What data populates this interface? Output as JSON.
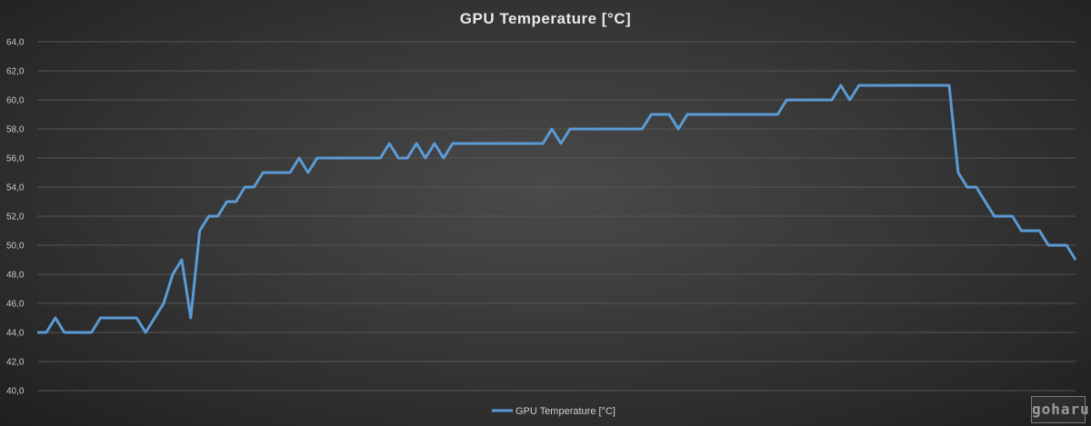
{
  "chart_data": {
    "type": "line",
    "title": "GPU Temperature [°C]",
    "xlabel": "",
    "ylabel": "",
    "ylim": [
      40,
      64
    ],
    "yticks": [
      "40,0",
      "42,0",
      "44,0",
      "46,0",
      "48,0",
      "50,0",
      "52,0",
      "54,0",
      "56,0",
      "58,0",
      "60,0",
      "62,0",
      "64,0"
    ],
    "grid": true,
    "legend_position": "bottom",
    "series": [
      {
        "name": "GPU Temperature [°C]",
        "color": "#5b9bd5",
        "values": [
          44,
          44,
          45,
          44,
          44,
          44,
          44,
          45,
          45,
          45,
          45,
          45,
          44,
          45,
          46,
          48,
          49,
          45,
          51,
          52,
          52,
          53,
          53,
          54,
          54,
          55,
          55,
          55,
          55,
          56,
          55,
          56,
          56,
          56,
          56,
          56,
          56,
          56,
          56,
          57,
          56,
          56,
          57,
          56,
          57,
          56,
          57,
          57,
          57,
          57,
          57,
          57,
          57,
          57,
          57,
          57,
          57,
          58,
          57,
          58,
          58,
          58,
          58,
          58,
          58,
          58,
          58,
          58,
          59,
          59,
          59,
          58,
          59,
          59,
          59,
          59,
          59,
          59,
          59,
          59,
          59,
          59,
          59,
          60,
          60,
          60,
          60,
          60,
          60,
          61,
          60,
          61,
          61,
          61,
          61,
          61,
          61,
          61,
          61,
          61,
          61,
          61,
          55,
          54,
          54,
          53,
          52,
          52,
          52,
          51,
          51,
          51,
          50,
          50,
          50,
          49
        ]
      }
    ]
  },
  "watermark": "goharu"
}
